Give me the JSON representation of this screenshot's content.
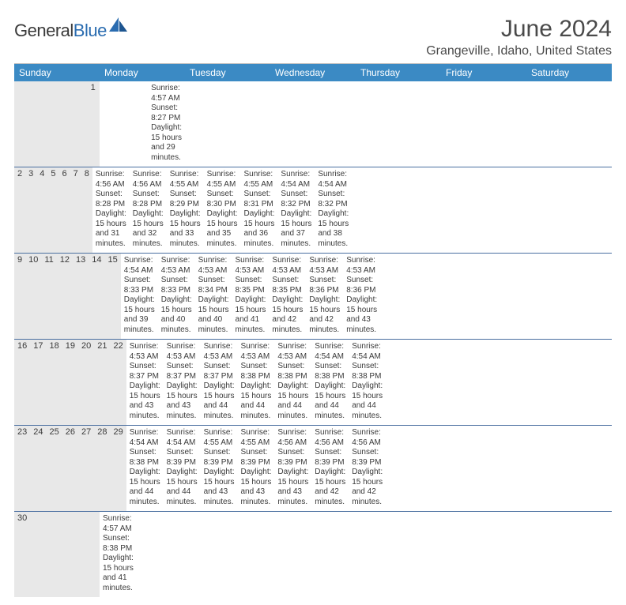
{
  "logo": {
    "word1": "General",
    "word2": "Blue"
  },
  "title": "June 2024",
  "location": "Grangeville, Idaho, United States",
  "header_bg": "#3b8ac4",
  "header_fg": "#ffffff",
  "daynum_bg": "#e8e8e8",
  "week_divider": "#4a6fa0",
  "text_color": "#3a3a3a",
  "daynames": [
    "Sunday",
    "Monday",
    "Tuesday",
    "Wednesday",
    "Thursday",
    "Friday",
    "Saturday"
  ],
  "weeks": [
    [
      {
        "n": "",
        "sunrise": "",
        "sunset": "",
        "daylight": ""
      },
      {
        "n": "",
        "sunrise": "",
        "sunset": "",
        "daylight": ""
      },
      {
        "n": "",
        "sunrise": "",
        "sunset": "",
        "daylight": ""
      },
      {
        "n": "",
        "sunrise": "",
        "sunset": "",
        "daylight": ""
      },
      {
        "n": "",
        "sunrise": "",
        "sunset": "",
        "daylight": ""
      },
      {
        "n": "",
        "sunrise": "",
        "sunset": "",
        "daylight": ""
      },
      {
        "n": "1",
        "sunrise": "Sunrise: 4:57 AM",
        "sunset": "Sunset: 8:27 PM",
        "daylight": "Daylight: 15 hours and 29 minutes."
      }
    ],
    [
      {
        "n": "2",
        "sunrise": "Sunrise: 4:56 AM",
        "sunset": "Sunset: 8:28 PM",
        "daylight": "Daylight: 15 hours and 31 minutes."
      },
      {
        "n": "3",
        "sunrise": "Sunrise: 4:56 AM",
        "sunset": "Sunset: 8:28 PM",
        "daylight": "Daylight: 15 hours and 32 minutes."
      },
      {
        "n": "4",
        "sunrise": "Sunrise: 4:55 AM",
        "sunset": "Sunset: 8:29 PM",
        "daylight": "Daylight: 15 hours and 33 minutes."
      },
      {
        "n": "5",
        "sunrise": "Sunrise: 4:55 AM",
        "sunset": "Sunset: 8:30 PM",
        "daylight": "Daylight: 15 hours and 35 minutes."
      },
      {
        "n": "6",
        "sunrise": "Sunrise: 4:55 AM",
        "sunset": "Sunset: 8:31 PM",
        "daylight": "Daylight: 15 hours and 36 minutes."
      },
      {
        "n": "7",
        "sunrise": "Sunrise: 4:54 AM",
        "sunset": "Sunset: 8:32 PM",
        "daylight": "Daylight: 15 hours and 37 minutes."
      },
      {
        "n": "8",
        "sunrise": "Sunrise: 4:54 AM",
        "sunset": "Sunset: 8:32 PM",
        "daylight": "Daylight: 15 hours and 38 minutes."
      }
    ],
    [
      {
        "n": "9",
        "sunrise": "Sunrise: 4:54 AM",
        "sunset": "Sunset: 8:33 PM",
        "daylight": "Daylight: 15 hours and 39 minutes."
      },
      {
        "n": "10",
        "sunrise": "Sunrise: 4:53 AM",
        "sunset": "Sunset: 8:33 PM",
        "daylight": "Daylight: 15 hours and 40 minutes."
      },
      {
        "n": "11",
        "sunrise": "Sunrise: 4:53 AM",
        "sunset": "Sunset: 8:34 PM",
        "daylight": "Daylight: 15 hours and 40 minutes."
      },
      {
        "n": "12",
        "sunrise": "Sunrise: 4:53 AM",
        "sunset": "Sunset: 8:35 PM",
        "daylight": "Daylight: 15 hours and 41 minutes."
      },
      {
        "n": "13",
        "sunrise": "Sunrise: 4:53 AM",
        "sunset": "Sunset: 8:35 PM",
        "daylight": "Daylight: 15 hours and 42 minutes."
      },
      {
        "n": "14",
        "sunrise": "Sunrise: 4:53 AM",
        "sunset": "Sunset: 8:36 PM",
        "daylight": "Daylight: 15 hours and 42 minutes."
      },
      {
        "n": "15",
        "sunrise": "Sunrise: 4:53 AM",
        "sunset": "Sunset: 8:36 PM",
        "daylight": "Daylight: 15 hours and 43 minutes."
      }
    ],
    [
      {
        "n": "16",
        "sunrise": "Sunrise: 4:53 AM",
        "sunset": "Sunset: 8:37 PM",
        "daylight": "Daylight: 15 hours and 43 minutes."
      },
      {
        "n": "17",
        "sunrise": "Sunrise: 4:53 AM",
        "sunset": "Sunset: 8:37 PM",
        "daylight": "Daylight: 15 hours and 43 minutes."
      },
      {
        "n": "18",
        "sunrise": "Sunrise: 4:53 AM",
        "sunset": "Sunset: 8:37 PM",
        "daylight": "Daylight: 15 hours and 44 minutes."
      },
      {
        "n": "19",
        "sunrise": "Sunrise: 4:53 AM",
        "sunset": "Sunset: 8:38 PM",
        "daylight": "Daylight: 15 hours and 44 minutes."
      },
      {
        "n": "20",
        "sunrise": "Sunrise: 4:53 AM",
        "sunset": "Sunset: 8:38 PM",
        "daylight": "Daylight: 15 hours and 44 minutes."
      },
      {
        "n": "21",
        "sunrise": "Sunrise: 4:54 AM",
        "sunset": "Sunset: 8:38 PM",
        "daylight": "Daylight: 15 hours and 44 minutes."
      },
      {
        "n": "22",
        "sunrise": "Sunrise: 4:54 AM",
        "sunset": "Sunset: 8:38 PM",
        "daylight": "Daylight: 15 hours and 44 minutes."
      }
    ],
    [
      {
        "n": "23",
        "sunrise": "Sunrise: 4:54 AM",
        "sunset": "Sunset: 8:38 PM",
        "daylight": "Daylight: 15 hours and 44 minutes."
      },
      {
        "n": "24",
        "sunrise": "Sunrise: 4:54 AM",
        "sunset": "Sunset: 8:39 PM",
        "daylight": "Daylight: 15 hours and 44 minutes."
      },
      {
        "n": "25",
        "sunrise": "Sunrise: 4:55 AM",
        "sunset": "Sunset: 8:39 PM",
        "daylight": "Daylight: 15 hours and 43 minutes."
      },
      {
        "n": "26",
        "sunrise": "Sunrise: 4:55 AM",
        "sunset": "Sunset: 8:39 PM",
        "daylight": "Daylight: 15 hours and 43 minutes."
      },
      {
        "n": "27",
        "sunrise": "Sunrise: 4:56 AM",
        "sunset": "Sunset: 8:39 PM",
        "daylight": "Daylight: 15 hours and 43 minutes."
      },
      {
        "n": "28",
        "sunrise": "Sunrise: 4:56 AM",
        "sunset": "Sunset: 8:39 PM",
        "daylight": "Daylight: 15 hours and 42 minutes."
      },
      {
        "n": "29",
        "sunrise": "Sunrise: 4:56 AM",
        "sunset": "Sunset: 8:39 PM",
        "daylight": "Daylight: 15 hours and 42 minutes."
      }
    ],
    [
      {
        "n": "30",
        "sunrise": "Sunrise: 4:57 AM",
        "sunset": "Sunset: 8:38 PM",
        "daylight": "Daylight: 15 hours and 41 minutes."
      },
      {
        "n": "",
        "sunrise": "",
        "sunset": "",
        "daylight": ""
      },
      {
        "n": "",
        "sunrise": "",
        "sunset": "",
        "daylight": ""
      },
      {
        "n": "",
        "sunrise": "",
        "sunset": "",
        "daylight": ""
      },
      {
        "n": "",
        "sunrise": "",
        "sunset": "",
        "daylight": ""
      },
      {
        "n": "",
        "sunrise": "",
        "sunset": "",
        "daylight": ""
      },
      {
        "n": "",
        "sunrise": "",
        "sunset": "",
        "daylight": ""
      }
    ]
  ]
}
